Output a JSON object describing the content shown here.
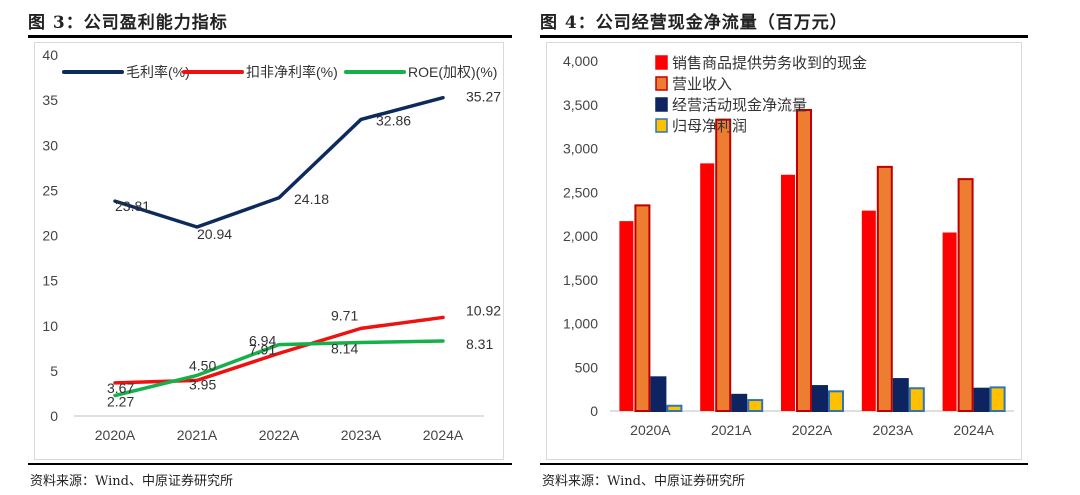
{
  "left": {
    "title": "图 3：公司盈利能力指标",
    "source": "资料来源：Wind、中原证券研究所"
  },
  "right": {
    "title": "图 4：公司经营现金净流量（百万元）",
    "source": "资料来源：Wind、中原证券研究所"
  },
  "chart_data": [
    {
      "type": "line",
      "title": "公司盈利能力指标",
      "categories": [
        "2020A",
        "2021A",
        "2022A",
        "2023A",
        "2024A"
      ],
      "ylim": [
        0,
        40
      ],
      "yticks": [
        0,
        5,
        10,
        15,
        20,
        25,
        30,
        35,
        40
      ],
      "series": [
        {
          "name": "毛利率(%)",
          "color": "#0d2a5c",
          "values": [
            23.81,
            20.94,
            24.18,
            32.86,
            35.27
          ],
          "labels": [
            "23.81",
            "20.94",
            "24.18",
            "32.86",
            "35.27"
          ]
        },
        {
          "name": "扣非净利率(%)",
          "color": "#ee1111",
          "values": [
            3.67,
            3.95,
            6.94,
            9.71,
            10.92
          ],
          "labels": [
            "3.67",
            "3.95",
            "6.94",
            "9.71",
            "10.92"
          ]
        },
        {
          "name": "ROE(加权)(%)",
          "color": "#16b04a",
          "values": [
            2.27,
            4.5,
            7.91,
            8.14,
            8.31
          ],
          "labels": [
            "2.27",
            "4.50",
            "7.91",
            "8.14",
            "8.31"
          ]
        }
      ]
    },
    {
      "type": "bar",
      "title": "公司经营现金净流量（百万元）",
      "categories": [
        "2020A",
        "2021A",
        "2022A",
        "2023A",
        "2024A"
      ],
      "ylim": [
        0,
        4000
      ],
      "yticks": [
        0,
        500,
        1000,
        1500,
        2000,
        2500,
        3000,
        3500,
        4000
      ],
      "ytick_labels": [
        "0",
        "500",
        "1,000",
        "1,500",
        "2,000",
        "2,500",
        "3,000",
        "3,500",
        "4,000"
      ],
      "series": [
        {
          "name": "销售商品提供劳务收到的现金",
          "color": "#ff0000",
          "border": "#ff0000",
          "values": [
            2170,
            2830,
            2700,
            2290,
            2040
          ]
        },
        {
          "name": "营业收入",
          "color": "#ed7d31",
          "border": "#c00000",
          "values": [
            2350,
            3330,
            3440,
            2790,
            2650
          ]
        },
        {
          "name": "经营活动现金净流量",
          "color": "#0d2460",
          "border": "#0d2460",
          "values": [
            385,
            185,
            285,
            365,
            255
          ]
        },
        {
          "name": "归母净利润",
          "color": "#ffc000",
          "border": "#2e75b6",
          "values": [
            60,
            125,
            225,
            260,
            270
          ]
        }
      ]
    }
  ]
}
